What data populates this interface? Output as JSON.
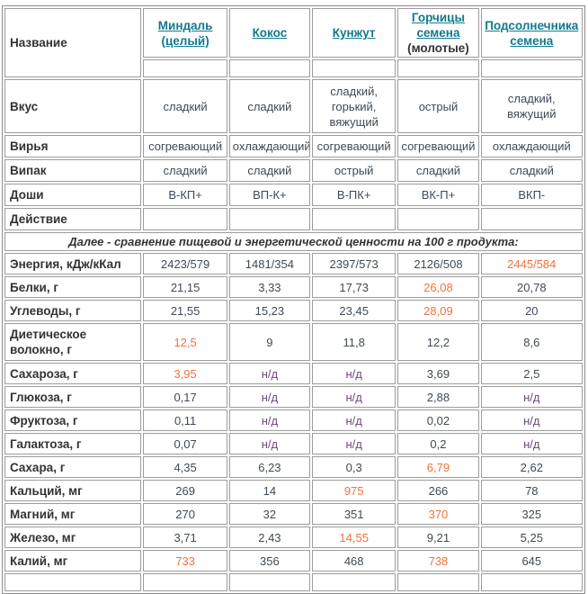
{
  "palette": {
    "link": "#11798c",
    "value_text": "#3f4a55",
    "label_text": "#333333",
    "highlight": "#f4713c",
    "na_text": "#6b4d73",
    "border": "#9c9c9c",
    "background": "#ffffff"
  },
  "table": {
    "name_header": "Название",
    "products": [
      {
        "link_text": "Миндаль (целый)",
        "suffix": ""
      },
      {
        "link_text": "Кокос",
        "suffix": ""
      },
      {
        "link_text": "Кунжут",
        "suffix": ""
      },
      {
        "link_text": "Горчицы семена",
        "suffix": "(молотые)"
      },
      {
        "link_text": "Подсолнечника семена",
        "suffix": ""
      }
    ],
    "property_rows": [
      {
        "label": "Вкус",
        "values": [
          "сладкий",
          "сладкий",
          "сладкий, горький, вяжущий",
          "острый",
          "сладкий, вяжущий"
        ],
        "styles": [
          "",
          "",
          "",
          "",
          ""
        ]
      },
      {
        "label": "Вирья",
        "values": [
          "согревающий",
          "охлаждающий",
          "согревающий",
          "согревающий",
          "охлаждающий"
        ],
        "styles": [
          "",
          "",
          "",
          "",
          ""
        ]
      },
      {
        "label": "Випак",
        "values": [
          "сладкий",
          "сладкий",
          "острый",
          "сладкий",
          "сладкий"
        ],
        "styles": [
          "",
          "",
          "",
          "",
          ""
        ]
      },
      {
        "label": "Доши",
        "values": [
          "В-КП+",
          "ВП-К+",
          "В-ПК+",
          "ВК-П+",
          "ВКП-"
        ],
        "styles": [
          "",
          "",
          "",
          "",
          ""
        ]
      },
      {
        "label": "Действие",
        "values": [
          "",
          "",
          "",
          "",
          ""
        ],
        "styles": [
          "",
          "",
          "",
          "",
          ""
        ]
      }
    ],
    "note": "Далее - сравнение пищевой и энергетической ценности на 100 г продукта:",
    "nutrient_rows": [
      {
        "label": "Энергия, кДж/кКал",
        "values": [
          "2423/579",
          "1481/354",
          "2397/573",
          "2126/508",
          "2445/584"
        ],
        "styles": [
          "",
          "",
          "",
          "",
          "hl"
        ]
      },
      {
        "label": "Белки, г",
        "values": [
          "21,15",
          "3,33",
          "17,73",
          "26,08",
          "20,78"
        ],
        "styles": [
          "",
          "",
          "",
          "hl",
          ""
        ]
      },
      {
        "label": "Углеводы, г",
        "values": [
          "21,55",
          "15,23",
          "23,45",
          "28,09",
          "20"
        ],
        "styles": [
          "",
          "",
          "",
          "hl",
          ""
        ]
      },
      {
        "label": "Диетическое волокно, г",
        "values": [
          "12,5",
          "9",
          "11,8",
          "12,2",
          "8,6"
        ],
        "styles": [
          "hl",
          "",
          "",
          "",
          ""
        ]
      },
      {
        "label": "Сахароза, г",
        "values": [
          "3,95",
          "н/д",
          "н/д",
          "3,69",
          "2,5"
        ],
        "styles": [
          "hl",
          "na",
          "na",
          "",
          ""
        ]
      },
      {
        "label": "Глюкоза, г",
        "values": [
          "0,17",
          "н/д",
          "н/д",
          "2,88",
          "н/д"
        ],
        "styles": [
          "",
          "na",
          "na",
          "",
          "na"
        ]
      },
      {
        "label": "Фруктоза, г",
        "values": [
          "0,11",
          "н/д",
          "н/д",
          "0,02",
          "н/д"
        ],
        "styles": [
          "",
          "na",
          "na",
          "",
          "na"
        ]
      },
      {
        "label": "Галактоза, г",
        "values": [
          "0,07",
          "н/д",
          "н/д",
          "0,2",
          "н/д"
        ],
        "styles": [
          "",
          "na",
          "na",
          "",
          "na"
        ]
      },
      {
        "label": "Сахара, г",
        "values": [
          "4,35",
          "6,23",
          "0,3",
          "6,79",
          "2,62"
        ],
        "styles": [
          "",
          "",
          "",
          "hl",
          ""
        ]
      },
      {
        "label": "Кальций, мг",
        "values": [
          "269",
          "14",
          "975",
          "266",
          "78"
        ],
        "styles": [
          "",
          "",
          "hl",
          "",
          ""
        ]
      },
      {
        "label": "Магний, мг",
        "values": [
          "270",
          "32",
          "351",
          "370",
          "325"
        ],
        "styles": [
          "",
          "",
          "",
          "hl",
          ""
        ]
      },
      {
        "label": "Железо, мг",
        "values": [
          "3,71",
          "2,43",
          "14,55",
          "9,21",
          "5,25"
        ],
        "styles": [
          "",
          "",
          "hl",
          "",
          ""
        ]
      },
      {
        "label": "Калий, мг",
        "values": [
          "733",
          "356",
          "468",
          "738",
          "645"
        ],
        "styles": [
          "hl",
          "",
          "",
          "hl",
          ""
        ]
      }
    ]
  }
}
